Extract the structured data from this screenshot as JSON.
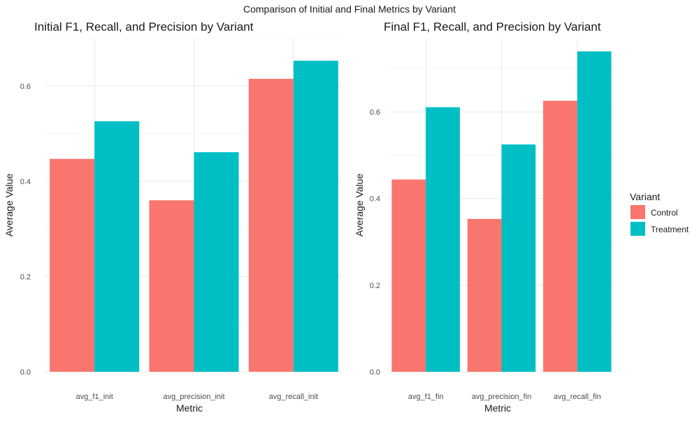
{
  "page_title": "Comparison of Initial and Final Metrics by Variant",
  "colors": {
    "Control": "#F8766D",
    "Treatment": "#00BFC4"
  },
  "legend": {
    "title": "Variant",
    "items": [
      {
        "label": "Control",
        "color": "#F8766D"
      },
      {
        "label": "Treatment",
        "color": "#00BFC4"
      }
    ]
  },
  "chart_data": [
    {
      "type": "bar",
      "title": "Initial F1, Recall, and Precision by Variant",
      "xlabel": "Metric",
      "ylabel": "Average Value",
      "categories": [
        "avg_f1_init",
        "avg_precision_init",
        "avg_recall_init"
      ],
      "series": [
        {
          "name": "Control",
          "values": [
            0.447,
            0.36,
            0.615
          ]
        },
        {
          "name": "Treatment",
          "values": [
            0.526,
            0.461,
            0.653
          ]
        }
      ],
      "yticks": [
        0.0,
        0.2,
        0.4,
        0.6
      ],
      "ytick_labels": [
        "0.0",
        "0.2",
        "0.4",
        "0.6"
      ],
      "ylim": [
        0,
        0.7
      ],
      "grid": true
    },
    {
      "type": "bar",
      "title": "Final F1, Recall, and Precision by Variant",
      "xlabel": "Metric",
      "ylabel": "Average Value",
      "categories": [
        "avg_f1_fin",
        "avg_precision_fin",
        "avg_recall_fin"
      ],
      "series": [
        {
          "name": "Control",
          "values": [
            0.444,
            0.353,
            0.626
          ]
        },
        {
          "name": "Treatment",
          "values": [
            0.611,
            0.525,
            0.74
          ]
        }
      ],
      "yticks": [
        0.0,
        0.2,
        0.4,
        0.6
      ],
      "ytick_labels": [
        "0.0",
        "0.2",
        "0.4",
        "0.6"
      ],
      "ylim": [
        0,
        0.77
      ],
      "grid": true
    }
  ]
}
